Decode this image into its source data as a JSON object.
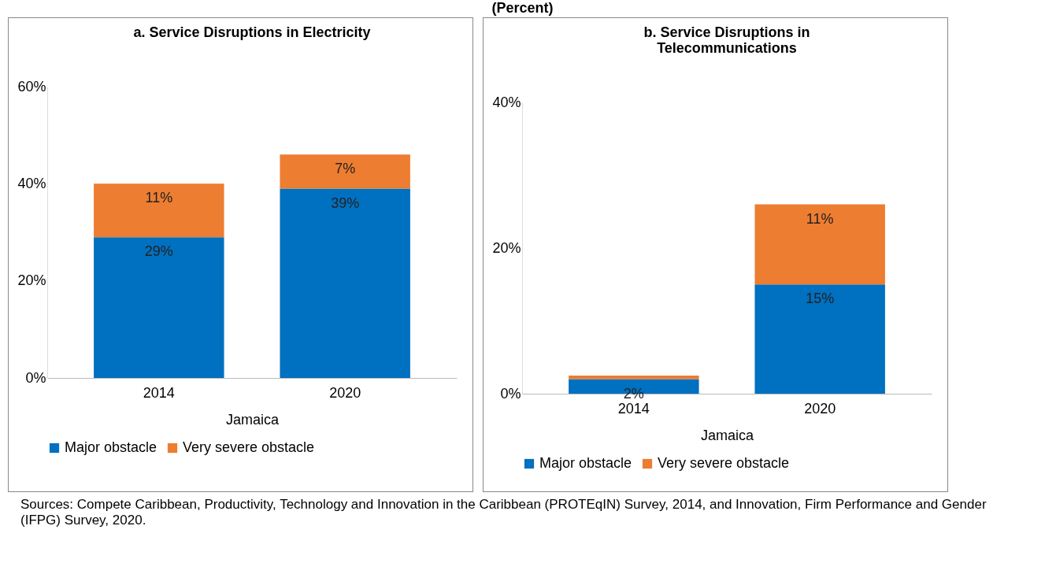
{
  "chart_data": [
    {
      "type": "bar",
      "title": "a. Service Disruptions in Electricity",
      "xlabel": "Jamaica",
      "categories": [
        "2014",
        "2020"
      ],
      "stacked": true,
      "ylim": [
        0,
        60
      ],
      "yticks": [
        {
          "value": 0,
          "label": "0%"
        },
        {
          "value": 20,
          "label": "20%"
        },
        {
          "value": 40,
          "label": "40%"
        },
        {
          "value": 60,
          "label": "60%"
        }
      ],
      "legend": "bottom",
      "series": [
        {
          "name": "Major obstacle",
          "color": "#0070c0",
          "values": [
            29,
            39
          ],
          "value_labels": [
            "29%",
            "39%"
          ]
        },
        {
          "name": "Very severe obstacle",
          "color": "#ed7d31",
          "values": [
            11,
            7
          ],
          "value_labels": [
            "11%",
            "7%"
          ]
        }
      ],
      "annotations": [
        "(Percent)",
        "Sources: Compete Caribbean, Productivity, Technology and Innovation in the Caribbean (PROTEqIN) Survey, 2014, and Innovation, Firm Performance and Gender (IFPG) Survey, 2020."
      ]
    },
    {
      "type": "bar",
      "title": "b. Service Disruptions in\nTelecommunications",
      "xlabel": "Jamaica",
      "categories": [
        "2014",
        "2020"
      ],
      "stacked": true,
      "ylim": [
        0,
        40
      ],
      "yticks": [
        {
          "value": 0,
          "label": "0%"
        },
        {
          "value": 20,
          "label": "20%"
        },
        {
          "value": 40,
          "label": "40%"
        }
      ],
      "legend": "bottom",
      "series": [
        {
          "name": "Major obstacle",
          "color": "#0070c0",
          "values": [
            2,
            15
          ],
          "value_labels": [
            "2%",
            "15%"
          ]
        },
        {
          "name": "Very severe obstacle",
          "color": "#ed7d31",
          "values": [
            0.5,
            11
          ],
          "value_labels": [
            null,
            "11%"
          ]
        }
      ]
    }
  ]
}
